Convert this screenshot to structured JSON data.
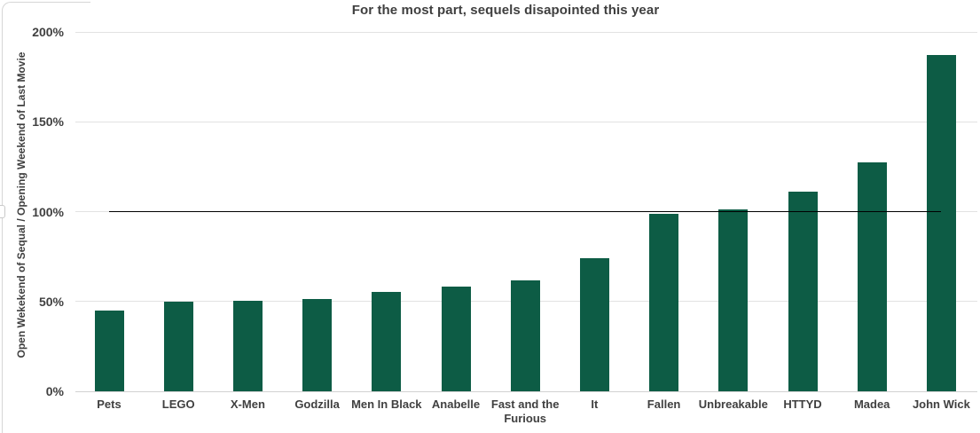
{
  "chart_data": {
    "type": "bar",
    "title": "For the most part, sequels disapointed this year",
    "categories": [
      "Pets",
      "LEGO",
      "X-Men",
      "Godzilla",
      "Men In Black",
      "Anabelle",
      "Fast and the Furious",
      "It",
      "Fallen",
      "Unbreakable",
      "HTTYD",
      "Madea",
      "John Wick"
    ],
    "values": [
      45,
      50,
      50.5,
      51.5,
      55.5,
      58.5,
      61.5,
      74,
      99,
      101,
      111,
      127.5,
      187
    ],
    "xlabel": "",
    "ylabel": "Open Wekekend of Sequal / Opening Weekend of Last Movie",
    "ylim": [
      0,
      200
    ],
    "yticks": [
      0,
      50,
      100,
      150,
      200
    ],
    "ytick_labels": [
      "0%",
      "50%",
      "100%",
      "150%",
      "200%"
    ],
    "grid": true,
    "legend": false,
    "reference_line": {
      "value": 100,
      "color": "#000000"
    },
    "colors": {
      "bar": "#0D5C45",
      "gridline": "#E2E2E2",
      "baseline": "#D2D2D2",
      "reference_line": "#000000",
      "title_text": "#3F3F3F",
      "axis_text": "#404040",
      "frame_border": "#D6D6D6"
    }
  }
}
